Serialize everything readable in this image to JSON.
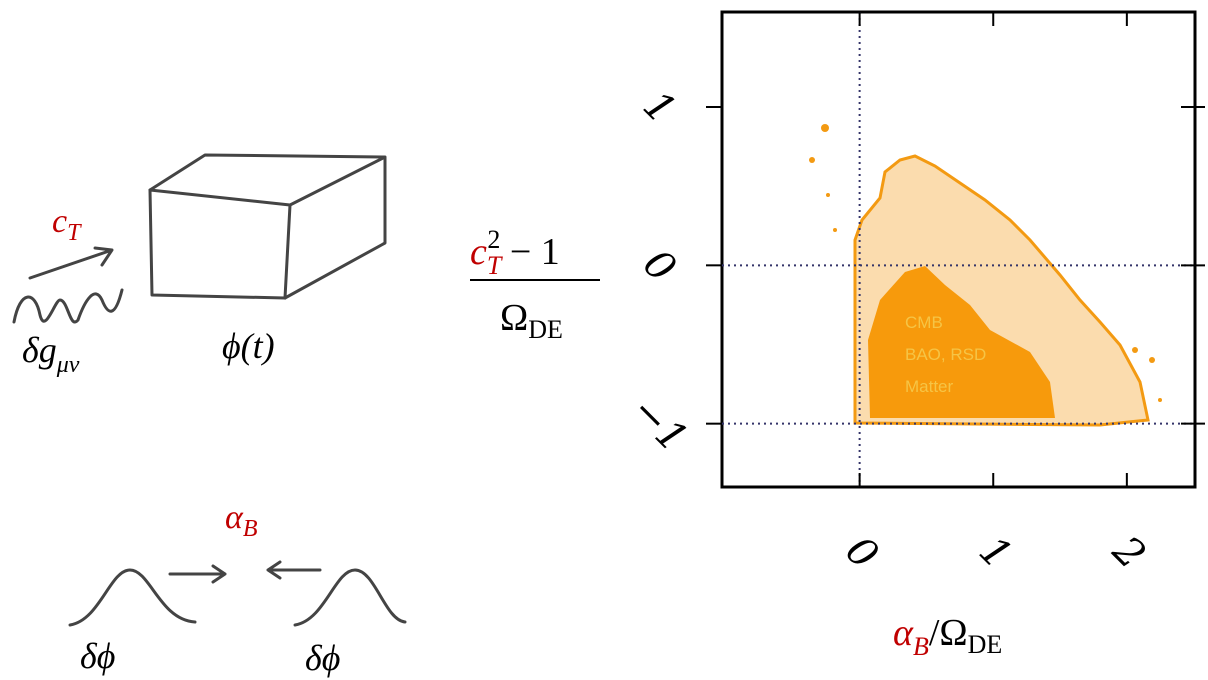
{
  "left_diagram": {
    "tensor_speed": {
      "base": "c",
      "sub": "T"
    },
    "metric_perturbation": {
      "base": "δg",
      "sub": "μν"
    },
    "background_field": "ϕ(t)",
    "braiding": {
      "base": "α",
      "sub": "B"
    },
    "field_perturbation_left": "δϕ",
    "field_perturbation_right": "δϕ"
  },
  "plot": {
    "y_label": {
      "num_base": "c",
      "num_sub": "T",
      "num_sup": "2",
      "num_rest": " − 1",
      "den_base": "Ω",
      "den_sub": "DE"
    },
    "x_label": {
      "base": "α",
      "sub": "B",
      "rest": "/Ω",
      "rest_sub": "DE"
    },
    "xlim": [
      -1.03,
      2.51
    ],
    "ylim": [
      -1.4,
      1.6
    ],
    "xticks": [
      0,
      1,
      2
    ],
    "yticks": [
      {
        "value": -1,
        "label": "−1"
      },
      0,
      1
    ],
    "reference_lines": {
      "x": [
        0
      ],
      "y": [
        0,
        -1
      ]
    },
    "region_labels": [
      "CMB",
      "BAO, RSD",
      "Matter"
    ]
  }
}
